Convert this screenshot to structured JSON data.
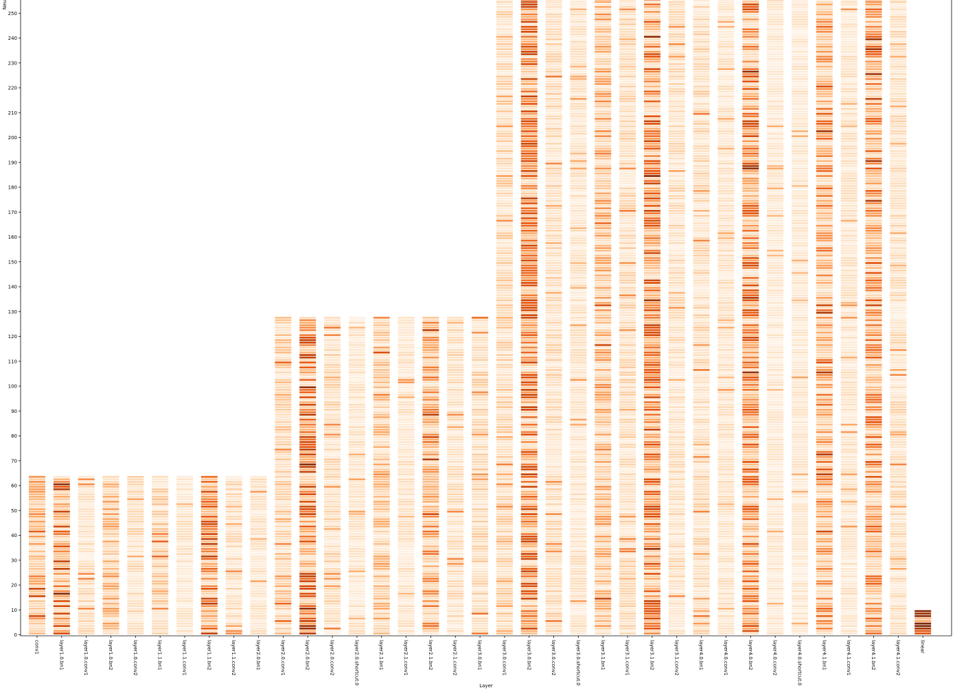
{
  "chart_data": {
    "type": "heatmap",
    "title": "",
    "xlabel": "Layer",
    "ylabel": "Neu",
    "ylim": [
      0,
      256
    ],
    "y_ticks": [
      0,
      10,
      20,
      30,
      40,
      50,
      60,
      70,
      80,
      90,
      100,
      110,
      120,
      130,
      140,
      150,
      160,
      170,
      180,
      190,
      200,
      210,
      220,
      230,
      240,
      250
    ],
    "colormap": [
      "#fff5eb",
      "#fdd9b4",
      "#fda762",
      "#e6550d",
      "#a63603",
      "#7f2704"
    ],
    "layers": [
      {
        "name": "conv1",
        "neurons": 64,
        "intensity": 0.35
      },
      {
        "name": "layer1.0.bn1",
        "neurons": 64,
        "intensity": 0.55
      },
      {
        "name": "layer1.0.conv1",
        "neurons": 64,
        "intensity": 0.18
      },
      {
        "name": "layer1.0.bn2",
        "neurons": 64,
        "intensity": 0.35
      },
      {
        "name": "layer1.0.conv2",
        "neurons": 64,
        "intensity": 0.18
      },
      {
        "name": "layer1.1.bn1",
        "neurons": 64,
        "intensity": 0.25
      },
      {
        "name": "layer1.1.conv1",
        "neurons": 64,
        "intensity": 0.15
      },
      {
        "name": "layer1.1.bn2",
        "neurons": 64,
        "intensity": 0.55
      },
      {
        "name": "layer1.1.conv2",
        "neurons": 64,
        "intensity": 0.18
      },
      {
        "name": "layer2.0.bn1",
        "neurons": 64,
        "intensity": 0.15
      },
      {
        "name": "layer2.0.conv1",
        "neurons": 128,
        "intensity": 0.25
      },
      {
        "name": "layer2.0.bn2",
        "neurons": 128,
        "intensity": 0.55
      },
      {
        "name": "layer2.0.conv2",
        "neurons": 128,
        "intensity": 0.2
      },
      {
        "name": "layer2.0.shortcut.0",
        "neurons": 128,
        "intensity": 0.15
      },
      {
        "name": "layer2.1.bn1",
        "neurons": 128,
        "intensity": 0.3
      },
      {
        "name": "layer2.1.conv1",
        "neurons": 128,
        "intensity": 0.15
      },
      {
        "name": "layer2.1.bn2",
        "neurons": 128,
        "intensity": 0.4
      },
      {
        "name": "layer2.1.conv2",
        "neurons": 128,
        "intensity": 0.18
      },
      {
        "name": "layer3.0.bn1",
        "neurons": 128,
        "intensity": 0.22
      },
      {
        "name": "layer3.0.conv1",
        "neurons": 256,
        "intensity": 0.22
      },
      {
        "name": "layer3.0.bn2",
        "neurons": 256,
        "intensity": 0.52
      },
      {
        "name": "layer3.0.conv2",
        "neurons": 256,
        "intensity": 0.2
      },
      {
        "name": "layer3.0.shortcut.0",
        "neurons": 256,
        "intensity": 0.15
      },
      {
        "name": "layer3.1.bn1",
        "neurons": 256,
        "intensity": 0.35
      },
      {
        "name": "layer3.1.conv1",
        "neurons": 256,
        "intensity": 0.2
      },
      {
        "name": "layer3.1.bn2",
        "neurons": 256,
        "intensity": 0.52
      },
      {
        "name": "layer3.1.conv2",
        "neurons": 256,
        "intensity": 0.18
      },
      {
        "name": "layer4.0.bn1",
        "neurons": 256,
        "intensity": 0.2
      },
      {
        "name": "layer4.0.conv1",
        "neurons": 256,
        "intensity": 0.15
      },
      {
        "name": "layer4.0.bn2",
        "neurons": 256,
        "intensity": 0.5
      },
      {
        "name": "layer4.0.conv2",
        "neurons": 256,
        "intensity": 0.12
      },
      {
        "name": "layer4.0.shortcut.0",
        "neurons": 256,
        "intensity": 0.12
      },
      {
        "name": "layer4.1.bn1",
        "neurons": 256,
        "intensity": 0.42
      },
      {
        "name": "layer4.1.conv1",
        "neurons": 256,
        "intensity": 0.15
      },
      {
        "name": "layer4.1.bn2",
        "neurons": 256,
        "intensity": 0.45
      },
      {
        "name": "layer4.1.conv2",
        "neurons": 256,
        "intensity": 0.18
      },
      {
        "name": "linear",
        "neurons": 10,
        "intensity": 0.95
      }
    ]
  }
}
